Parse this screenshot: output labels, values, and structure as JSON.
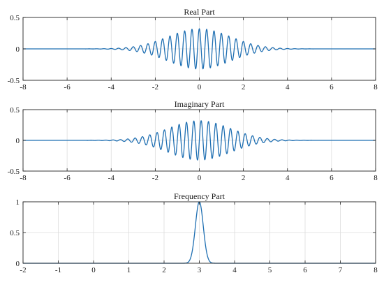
{
  "colors": {
    "line": "#1f6fb2",
    "grid": "#dcdcdc",
    "axis": "#222222"
  },
  "chart_data": [
    {
      "type": "line",
      "title": "Real Part",
      "xlabel": "",
      "ylabel": "",
      "xlim": [
        -8,
        8
      ],
      "ylim": [
        -0.5,
        0.5
      ],
      "grid": true,
      "xticks": [
        "-8",
        "-6",
        "-4",
        "-2",
        "0",
        "2",
        "4",
        "6",
        "8"
      ],
      "yticks": [
        "0.5",
        "0",
        "-0.5"
      ],
      "series": [
        {
          "function": "0.32*exp(-x^2/4)*cos(2*pi*3*x)",
          "x_range": [
            -8,
            8
          ]
        }
      ]
    },
    {
      "type": "line",
      "title": "Imaginary Part",
      "xlabel": "",
      "ylabel": "",
      "xlim": [
        -8,
        8
      ],
      "ylim": [
        -0.5,
        0.5
      ],
      "grid": true,
      "xticks": [
        "-8",
        "-6",
        "-4",
        "-2",
        "0",
        "2",
        "4",
        "6",
        "8"
      ],
      "yticks": [
        "0.5",
        "0",
        "-0.5"
      ],
      "series": [
        {
          "function": "0.32*exp(-x^2/4)*sin(2*pi*3*x)",
          "x_range": [
            -8,
            8
          ]
        }
      ]
    },
    {
      "type": "line",
      "title": "Frequency Part",
      "xlabel": "",
      "ylabel": "",
      "xlim": [
        -2,
        8
      ],
      "ylim": [
        0,
        1
      ],
      "grid": true,
      "xticks": [
        "-2",
        "-1",
        "0",
        "1",
        "2",
        "3",
        "4",
        "5",
        "6",
        "7",
        "8"
      ],
      "yticks": [
        "1",
        "0.5",
        "0"
      ],
      "series": [
        {
          "function": "exp(-(x-3)^2/0.025)",
          "x_range": [
            -2,
            8
          ],
          "peak": {
            "x": 3,
            "y": 1
          }
        }
      ]
    }
  ]
}
